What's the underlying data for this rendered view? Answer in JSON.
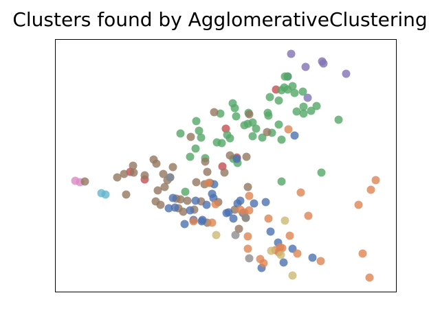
{
  "chart_data": {
    "type": "scatter",
    "title": "Clusters found by AgglomerativeClustering",
    "xlim": [
      0,
      496
    ],
    "ylim": [
      0,
      368
    ],
    "series": [
      {
        "color": "#8172b3",
        "x": [
          343,
          364,
          388,
          390,
          423,
          367,
          338
        ],
        "values": [
          347,
          328,
          336,
          333,
          318,
          283,
          314
        ]
      },
      {
        "color": "#da8bc3",
        "x": [
          29,
          36
        ],
        "values": [
          162,
          160
        ]
      },
      {
        "color": "#64b5cd",
        "x": [
          67,
          73
        ],
        "values": [
          144,
          142
        ]
      },
      {
        "color": "#c44e52",
        "x": [
          321,
          248,
          243,
          109,
          130,
          264
        ],
        "values": [
          295,
          238,
          183,
          175,
          164,
          196
        ]
      },
      {
        "color": "#55a868",
        "x": [
          334,
          338,
          333,
          345,
          329,
          338,
          348,
          360,
          312,
          325,
          361,
          380,
          372,
          361,
          258,
          261,
          240,
          281,
          309,
          310,
          275,
          280,
          263,
          287,
          292,
          325,
          351,
          412,
          205,
          209,
          182,
          212,
          250,
          254,
          235,
          242,
          204,
          287,
          301,
          315,
          329,
          218,
          196,
          265,
          259,
          387,
          329,
          189
        ],
        "values": [
          314,
          314,
          298,
          300,
          294,
          295,
          290,
          292,
          284,
          279,
          270,
          271,
          264,
          260,
          275,
          268,
          260,
          261,
          261,
          257,
          243,
          245,
          256,
          247,
          238,
          244,
          263,
          251,
          249,
          235,
          231,
          225,
          229,
          224,
          218,
          217,
          209,
          227,
          225,
          232,
          222,
          195,
          197,
          188,
          194,
          174,
          161,
          146
        ]
      },
      {
        "color": "#937860",
        "x": [
          231,
          282,
          308,
          197,
          254,
          278,
          143,
          218,
          147,
          171,
          113,
          100,
          90,
          114,
          130,
          157,
          221,
          163,
          149,
          159,
          205,
          217,
          225,
          246,
          280,
          103,
          146,
          153,
          176,
          182,
          192,
          212,
          179,
          186,
          202,
          237,
          221,
          267,
          277,
          261,
          43
        ],
        "values": [
          262,
          259,
          233,
          226,
          199,
          197,
          193,
          190,
          187,
          182,
          184,
          172,
          167,
          174,
          170,
          172,
          175,
          163,
          148,
          153,
          160,
          157,
          159,
          174,
          153,
          142,
          132,
          127,
          136,
          135,
          133,
          132,
          122,
          117,
          120,
          131,
          101,
          92,
          108,
          120,
          161
        ]
      },
      {
        "color": "#4c72b0",
        "x": [
          264,
          348,
          231,
          228,
          230,
          220,
          204,
          171,
          165,
          174,
          196,
          201,
          188,
          213,
          214,
          252,
          249,
          259,
          265,
          269,
          289,
          306,
          273,
          313,
          324,
          345,
          332,
          300,
          374,
          167
        ],
        "values": [
          194,
          228,
          157,
          143,
          137,
          127,
          133,
          137,
          122,
          123,
          119,
          105,
          99,
          103,
          105,
          116,
          115,
          107,
          129,
          133,
          129,
          131,
          115,
          88,
          72,
          63,
          43,
          35,
          50,
          167
        ]
      },
      {
        "color": "#dd8452",
        "x": [
          339,
          223,
          282,
          269,
          275,
          282,
          233,
          228,
          201,
          310,
          341,
          357,
          368,
          441,
          459,
          466,
          280,
          280,
          298,
          303,
          325,
          327,
          330,
          320,
          352,
          386,
          447,
          457
        ],
        "values": [
          237,
          159,
          140,
          120,
          116,
          119,
          128,
          101,
          103,
          107,
          82,
          145,
          111,
          127,
          149,
          163,
          81,
          63,
          48,
          42,
          58,
          65,
          64,
          61,
          56,
          45,
          56,
          21
        ]
      },
      {
        "color": "#ccb974",
        "x": [
          334,
          234,
          314,
          328,
          345
        ],
        "values": [
          104,
          83,
          60,
          54,
          24
        ]
      },
      {
        "color": "#8c8c8c",
        "x": [
          262,
          277,
          282,
          167
        ],
        "values": [
          83,
          108,
          49,
          167
        ]
      }
    ]
  }
}
